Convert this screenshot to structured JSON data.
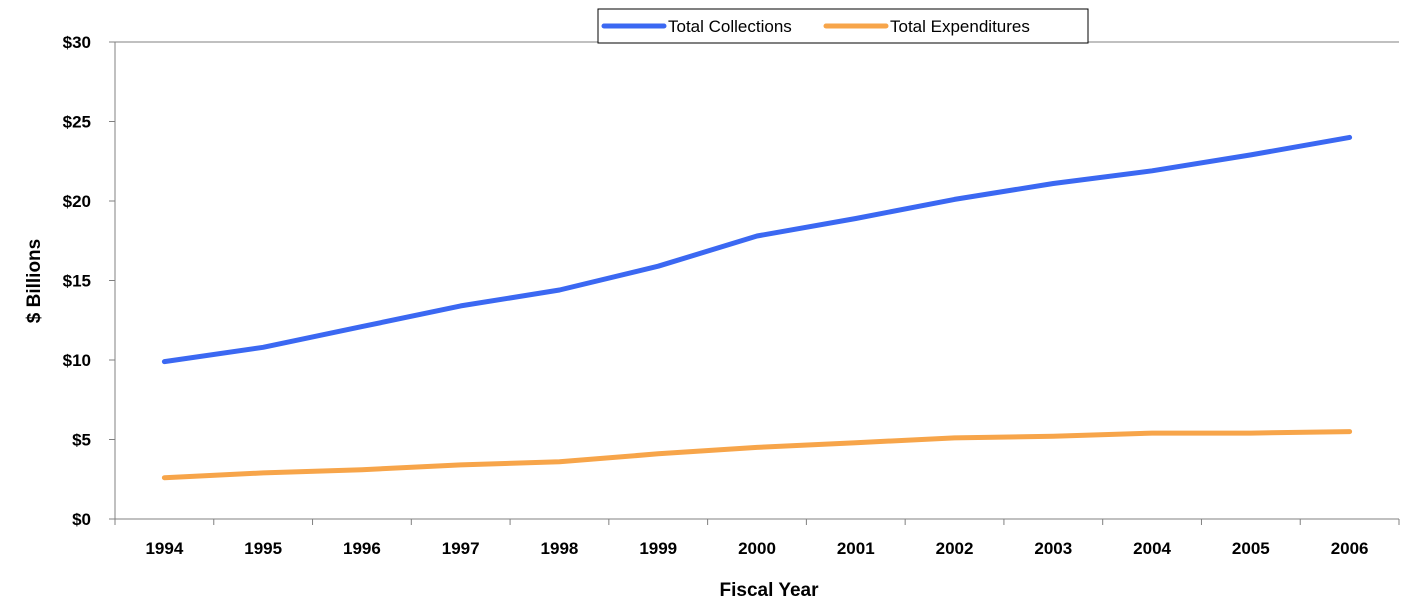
{
  "chart_data": {
    "type": "line",
    "title": "",
    "xlabel": "Fiscal Year",
    "ylabel": "$ Billions",
    "x": [
      "1994",
      "1995",
      "1996",
      "1997",
      "1998",
      "1999",
      "2000",
      "2001",
      "2002",
      "2003",
      "2004",
      "2005",
      "2006"
    ],
    "ylim": [
      0,
      30
    ],
    "y_ticks": [
      0,
      5,
      10,
      15,
      20,
      25,
      30
    ],
    "y_tick_labels": [
      "$0",
      "$5",
      "$10",
      "$15",
      "$20",
      "$25",
      "$30"
    ],
    "grid": false,
    "legend_position": "top-center",
    "series": [
      {
        "name": "Total Collections",
        "color": "#3b68f2",
        "values": [
          9.9,
          10.8,
          12.1,
          13.4,
          14.4,
          15.9,
          17.8,
          18.9,
          20.1,
          21.1,
          21.9,
          22.9,
          24.0
        ]
      },
      {
        "name": "Total Expenditures",
        "color": "#f7a54a",
        "values": [
          2.6,
          2.9,
          3.1,
          3.4,
          3.6,
          4.1,
          4.5,
          4.8,
          5.1,
          5.2,
          5.4,
          5.4,
          5.5
        ]
      }
    ]
  }
}
